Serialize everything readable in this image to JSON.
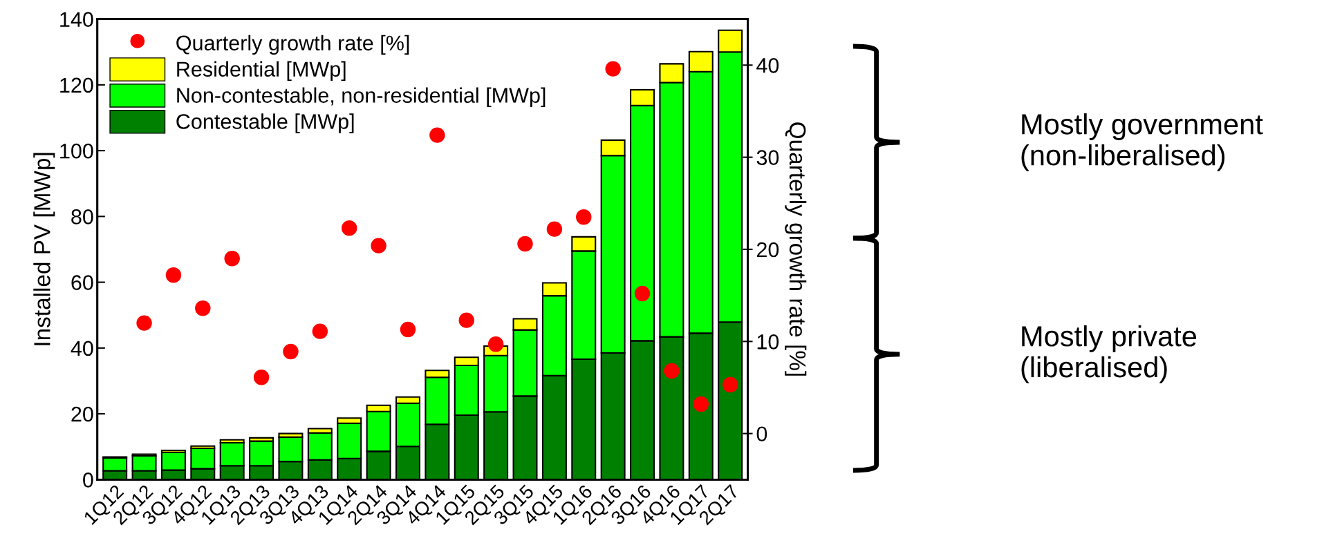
{
  "chart_data": {
    "type": "bar",
    "stacked": true,
    "ylabel": "Installed PV [MWp]",
    "y2label": "Quarterly growth rate [%]",
    "categories": [
      "1Q12",
      "2Q12",
      "3Q12",
      "4Q12",
      "1Q13",
      "2Q13",
      "3Q13",
      "4Q13",
      "1Q14",
      "2Q14",
      "3Q14",
      "4Q14",
      "1Q15",
      "2Q15",
      "3Q15",
      "4Q15",
      "1Q16",
      "2Q16",
      "3Q16",
      "4Q16",
      "1Q17",
      "2Q17"
    ],
    "series": [
      {
        "name": "Contestable [MWp]",
        "color": "#008000",
        "values": [
          2.7,
          2.7,
          2.9,
          3.3,
          4.2,
          4.2,
          5.5,
          6.0,
          6.4,
          8.6,
          10.1,
          16.8,
          19.6,
          20.6,
          25.4,
          31.6,
          36.6,
          38.5,
          42.2,
          43.4,
          44.5,
          47.9
        ]
      },
      {
        "name": "Non-contestable, non-residential [MWp]",
        "color": "#00ff00",
        "values": [
          3.9,
          4.5,
          5.4,
          6.2,
          7.0,
          7.5,
          7.4,
          8.2,
          10.7,
          12.1,
          13.1,
          14.3,
          15.1,
          17.1,
          20.1,
          24.3,
          32.9,
          60.0,
          71.5,
          77.3,
          79.5,
          82.1
        ]
      },
      {
        "name": "Residential [MWp]",
        "color": "#ffff00",
        "values": [
          0.3,
          0.5,
          0.6,
          0.7,
          0.9,
          1.0,
          1.1,
          1.3,
          1.6,
          1.9,
          1.9,
          2.1,
          2.5,
          2.9,
          3.4,
          3.9,
          4.3,
          4.7,
          4.8,
          5.7,
          6.1,
          6.6
        ]
      },
      {
        "name": "Quarterly growth rate [%]",
        "type": "scatter",
        "axis": "y2",
        "marker": "circle",
        "color": "#ff0000",
        "values": [
          null,
          12.0,
          17.2,
          13.6,
          19.0,
          6.1,
          8.9,
          11.1,
          22.3,
          20.4,
          11.3,
          32.4,
          12.3,
          9.7,
          20.6,
          22.2,
          23.5,
          39.6,
          15.2,
          6.8,
          3.2,
          5.3
        ]
      }
    ],
    "ylim": [
      0,
      140
    ],
    "yticks": [
      0,
      20,
      40,
      60,
      80,
      100,
      120,
      140
    ],
    "y2lim": [
      -5,
      45
    ],
    "y2ticks": [
      0,
      10,
      20,
      30,
      40
    ],
    "legend": "top left",
    "grid": false,
    "annotations": [
      "Mostly government\n(non-liberalised)",
      "Mostly private\n(liberalised)"
    ]
  }
}
